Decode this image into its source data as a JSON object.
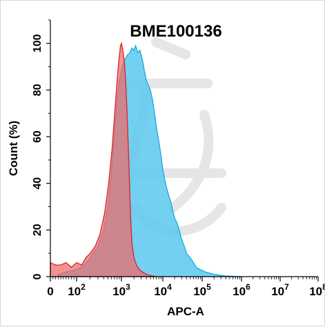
{
  "chart_data": {
    "type": "area",
    "title": "BME100136",
    "xlabel": "APC-A",
    "ylabel": "Count  (%)",
    "xscale": "log (biexponential, 0 at left)",
    "xlim": [
      0,
      100000000
    ],
    "ylim": [
      0,
      110
    ],
    "x_ticks": [
      {
        "base": "0",
        "exp": ""
      },
      {
        "base": "10",
        "exp": "2"
      },
      {
        "base": "10",
        "exp": "3"
      },
      {
        "base": "10",
        "exp": "4"
      },
      {
        "base": "10",
        "exp": "5"
      },
      {
        "base": "10",
        "exp": "6"
      },
      {
        "base": "10",
        "exp": "7"
      },
      {
        "base": "10",
        "exp": "8"
      }
    ],
    "y_ticks": [
      "0",
      "20",
      "40",
      "60",
      "80",
      "100"
    ],
    "series": [
      {
        "color_fill": "#5bc8ee",
        "color_line": "#1aa7dd",
        "points": [
          [
            30,
            1
          ],
          [
            60,
            2
          ],
          [
            100,
            3
          ],
          [
            150,
            5
          ],
          [
            200,
            8
          ],
          [
            300,
            13
          ],
          [
            400,
            20
          ],
          [
            500,
            30
          ],
          [
            600,
            45
          ],
          [
            700,
            62
          ],
          [
            800,
            76
          ],
          [
            900,
            84
          ],
          [
            1000,
            88
          ],
          [
            1100,
            91
          ],
          [
            1200,
            93
          ],
          [
            1400,
            95
          ],
          [
            1600,
            96
          ],
          [
            1800,
            98
          ],
          [
            2000,
            97
          ],
          [
            2200,
            99
          ],
          [
            2500,
            96
          ],
          [
            2800,
            97
          ],
          [
            3200,
            93
          ],
          [
            3600,
            88
          ],
          [
            4000,
            84
          ],
          [
            4500,
            82
          ],
          [
            5000,
            80
          ],
          [
            5600,
            76
          ],
          [
            6300,
            70
          ],
          [
            7000,
            64
          ],
          [
            8000,
            58
          ],
          [
            9000,
            52
          ],
          [
            10000,
            46
          ],
          [
            11000,
            42
          ],
          [
            12500,
            38
          ],
          [
            14000,
            35
          ],
          [
            16000,
            32
          ],
          [
            18000,
            28
          ],
          [
            20000,
            25
          ],
          [
            23000,
            23
          ],
          [
            26000,
            20
          ],
          [
            30000,
            16
          ],
          [
            35000,
            13
          ],
          [
            40000,
            10
          ],
          [
            50000,
            8
          ],
          [
            60000,
            6
          ],
          [
            70000,
            4
          ],
          [
            90000,
            3
          ],
          [
            120000,
            2
          ],
          [
            200000,
            1
          ],
          [
            400000,
            0.3
          ],
          [
            1000000,
            0
          ]
        ]
      },
      {
        "color_fill": "#f06868",
        "color_line": "#e02020",
        "points": [
          [
            0,
            6
          ],
          [
            20,
            5
          ],
          [
            40,
            5
          ],
          [
            60,
            6
          ],
          [
            80,
            4
          ],
          [
            100,
            6
          ],
          [
            130,
            5
          ],
          [
            160,
            8
          ],
          [
            200,
            10
          ],
          [
            260,
            13
          ],
          [
            330,
            18
          ],
          [
            420,
            27
          ],
          [
            520,
            40
          ],
          [
            620,
            55
          ],
          [
            720,
            72
          ],
          [
            800,
            84
          ],
          [
            880,
            93
          ],
          [
            950,
            99
          ],
          [
            1000,
            100
          ],
          [
            1060,
            98
          ],
          [
            1120,
            95
          ],
          [
            1200,
            90
          ],
          [
            1300,
            80
          ],
          [
            1400,
            65
          ],
          [
            1500,
            50
          ],
          [
            1600,
            35
          ],
          [
            1700,
            22
          ],
          [
            1800,
            14
          ],
          [
            2000,
            8
          ],
          [
            2300,
            5
          ],
          [
            2700,
            3
          ],
          [
            3200,
            2
          ],
          [
            4000,
            1
          ],
          [
            5000,
            0.5
          ],
          [
            7000,
            0
          ]
        ]
      }
    ],
    "watermark": "none"
  }
}
